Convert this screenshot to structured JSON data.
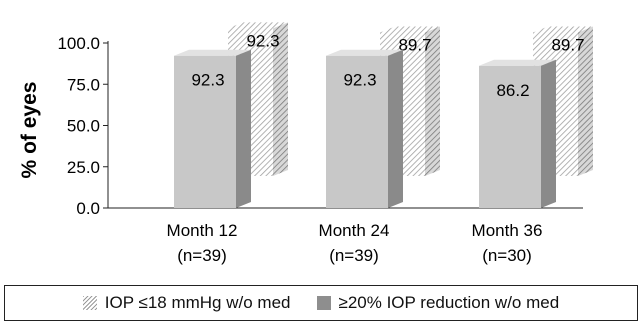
{
  "chart_data": {
    "type": "bar",
    "ylabel": "% of eyes",
    "ylim": [
      0,
      100
    ],
    "yticks": [
      "0.0",
      "25.0",
      "50.0",
      "75.0",
      "100.0"
    ],
    "categories": [
      {
        "line1": "Month 12",
        "line2": "(n=39)"
      },
      {
        "line1": "Month 24",
        "line2": "(n=39)"
      },
      {
        "line1": "Month 36",
        "line2": "(n=30)"
      }
    ],
    "series": [
      {
        "name": "≥20% IOP reduction w/o med",
        "values": [
          92.3,
          92.3,
          86.2
        ],
        "labels": [
          "92.3",
          "92.3",
          "86.2"
        ],
        "style": "solid"
      },
      {
        "name": "IOP ≤18 mmHg w/o med",
        "values": [
          92.3,
          89.7,
          89.7
        ],
        "labels": [
          "92.3",
          "89.7",
          "89.7"
        ],
        "style": "hatched"
      }
    ],
    "legend_position": "bottom",
    "colors": {
      "front_face": "#c8c8c8",
      "side_face": "#8a8a8a",
      "top_face": "#e2e2e2",
      "hatch_line": "#9a9a9a"
    }
  }
}
